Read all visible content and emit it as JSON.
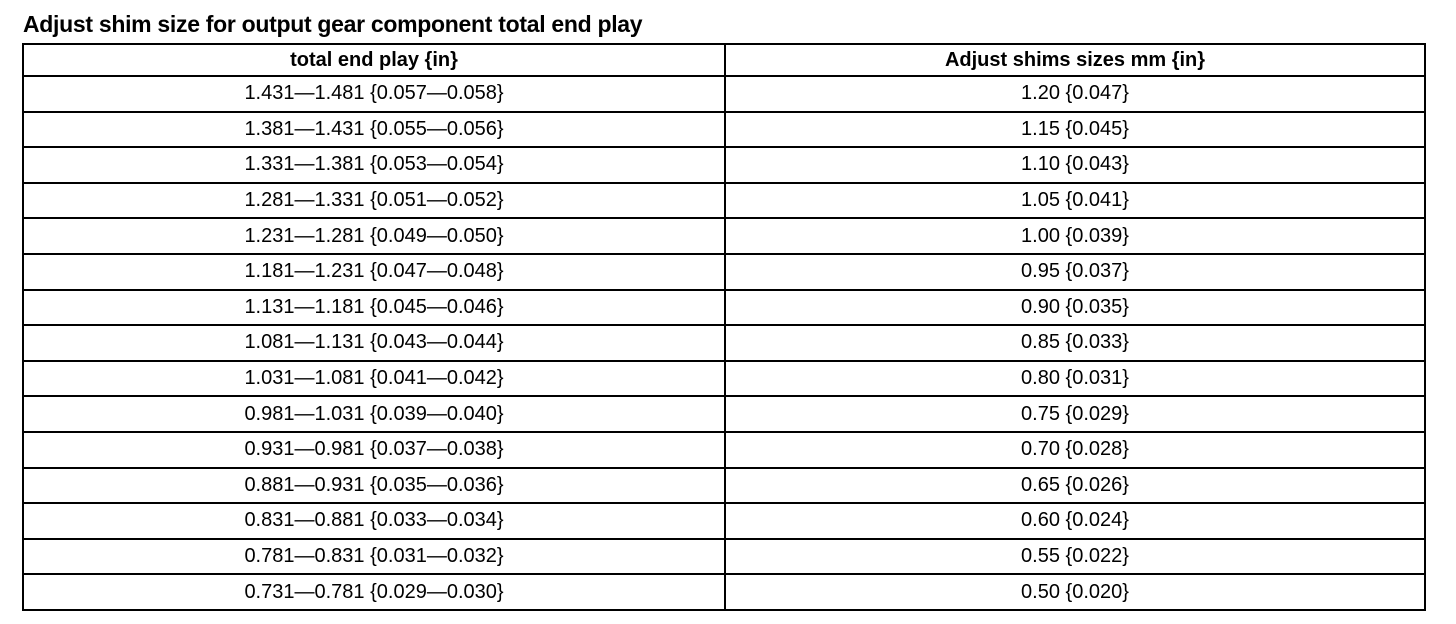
{
  "title": "Adjust shim size for output gear component total end play",
  "table": {
    "headers": [
      "total end play {in}",
      "Adjust shims sizes mm {in}"
    ],
    "rows": [
      [
        "1.431—1.481 {0.057—0.058}",
        "1.20 {0.047}"
      ],
      [
        "1.381—1.431 {0.055—0.056}",
        "1.15 {0.045}"
      ],
      [
        "1.331—1.381 {0.053—0.054}",
        "1.10 {0.043}"
      ],
      [
        "1.281—1.331 {0.051—0.052}",
        "1.05 {0.041}"
      ],
      [
        "1.231—1.281 {0.049—0.050}",
        "1.00 {0.039}"
      ],
      [
        "1.181—1.231 {0.047—0.048}",
        "0.95 {0.037}"
      ],
      [
        "1.131—1.181 {0.045—0.046}",
        "0.90 {0.035}"
      ],
      [
        "1.081—1.131 {0.043—0.044}",
        "0.85 {0.033}"
      ],
      [
        "1.031—1.081 {0.041—0.042}",
        "0.80 {0.031}"
      ],
      [
        "0.981—1.031 {0.039—0.040}",
        "0.75 {0.029}"
      ],
      [
        "0.931—0.981 {0.037—0.038}",
        "0.70 {0.028}"
      ],
      [
        "0.881—0.931 {0.035—0.036}",
        "0.65 {0.026}"
      ],
      [
        "0.831—0.881 {0.033—0.034}",
        "0.60 {0.024}"
      ],
      [
        "0.781—0.831 {0.031—0.032}",
        "0.55 {0.022}"
      ],
      [
        "0.731—0.781 {0.029—0.030}",
        "0.50 {0.020}"
      ]
    ]
  }
}
